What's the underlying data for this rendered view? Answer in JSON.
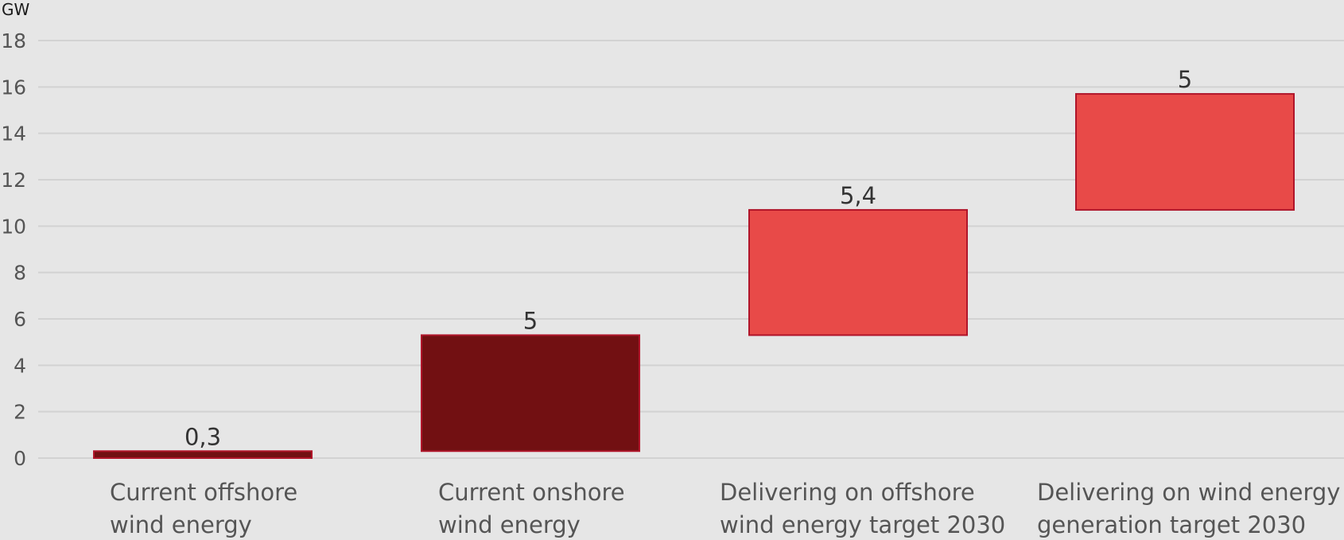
{
  "chart_data": {
    "type": "bar",
    "subtype": "waterfall",
    "unit_label": "GW",
    "title": "",
    "xlabel": "",
    "ylabel": "",
    "ylim": [
      0,
      18
    ],
    "yticks": [
      0,
      2,
      4,
      6,
      8,
      10,
      12,
      14,
      16,
      18
    ],
    "grid": true,
    "legend": "none",
    "categories": [
      [
        "Current offshore",
        "wind energy"
      ],
      [
        "Current onshore",
        "wind energy"
      ],
      [
        "Delivering on offshore",
        "wind energy target 2030"
      ],
      [
        "Delivering on wind energy",
        "generation target 2030"
      ]
    ],
    "bars": [
      {
        "base": 0,
        "value": 0.3,
        "label": "0,3",
        "color": "#721012"
      },
      {
        "base": 0.3,
        "value": 5,
        "label": "5",
        "color": "#721012"
      },
      {
        "base": 5.3,
        "value": 5.4,
        "label": "5,4",
        "color": "#e84a48"
      },
      {
        "base": 10.7,
        "value": 5,
        "label": "5",
        "color": "#e84a48"
      }
    ],
    "colors": {
      "current": "#721012",
      "target": "#e84a48",
      "bar_outline": "#b0152a"
    }
  }
}
